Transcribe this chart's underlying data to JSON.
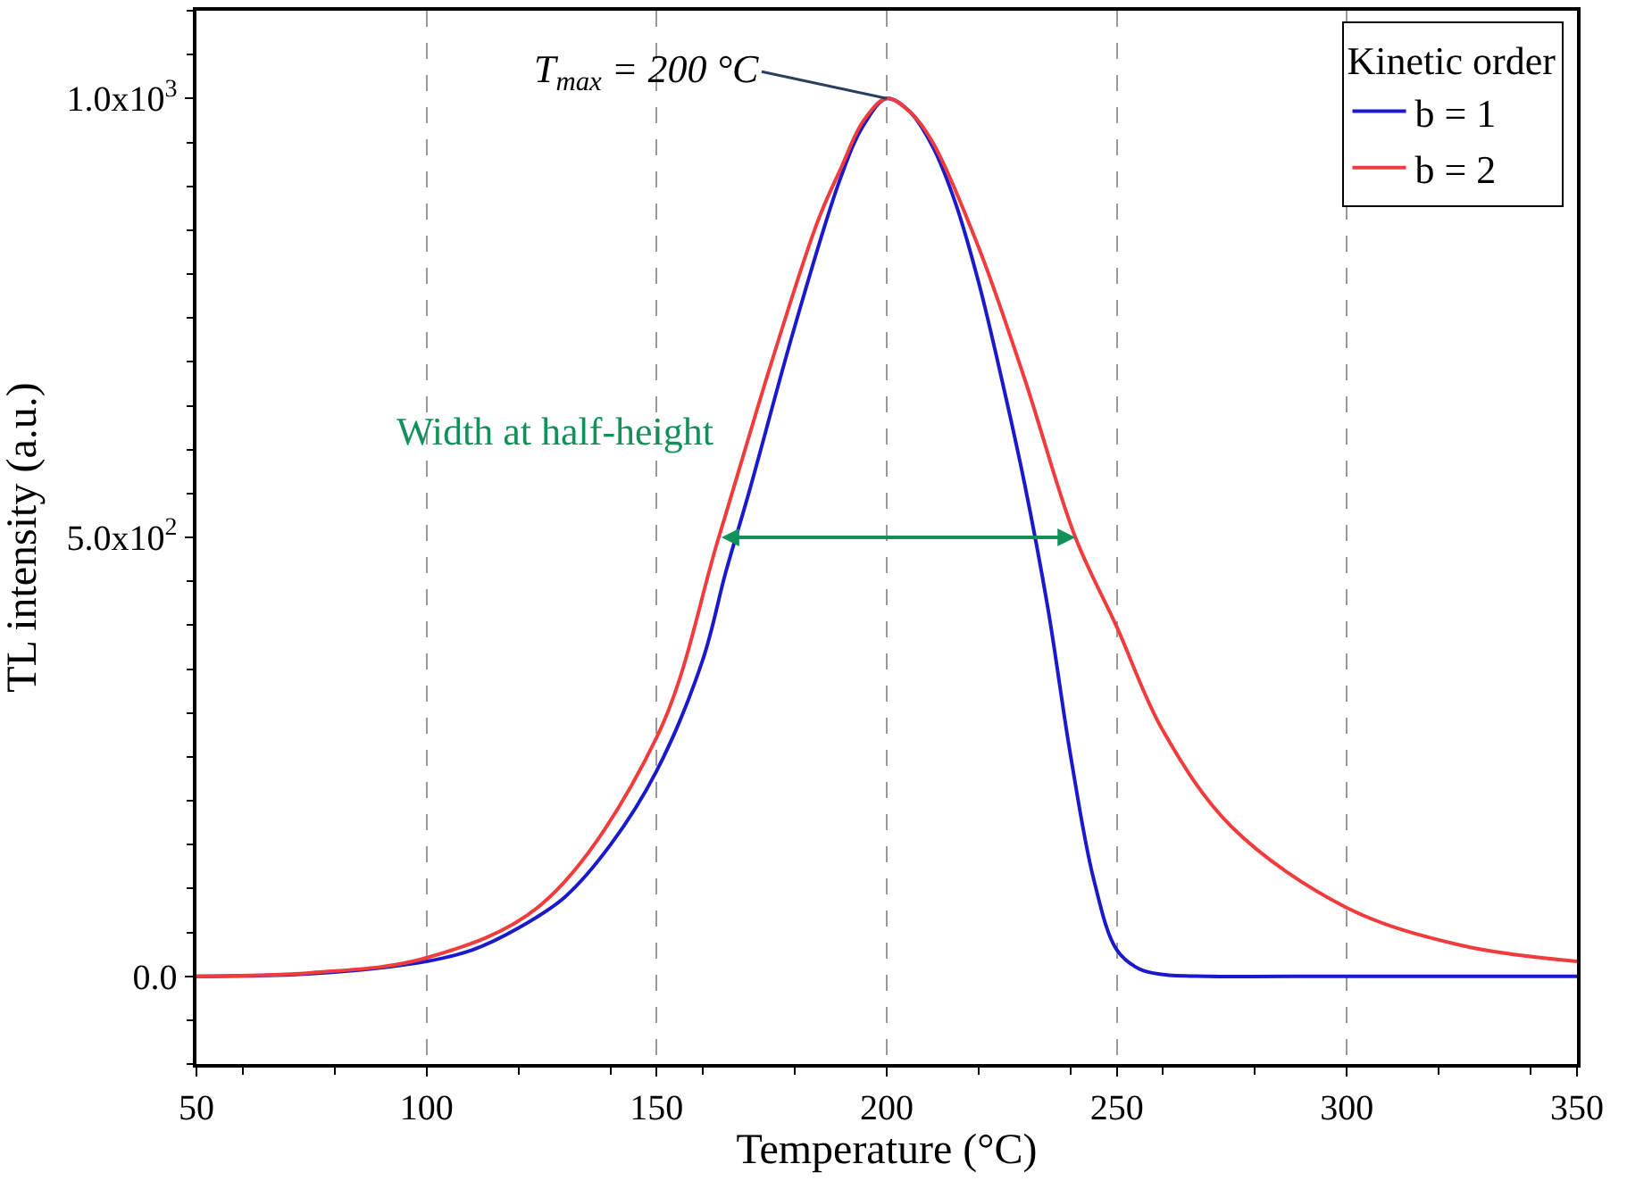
{
  "chart_data": {
    "type": "line",
    "xlabel": "Temperature (°C)",
    "ylabel": "TL intensity (a.u.)",
    "legend_title": "Kinetic order",
    "x": [
      50,
      75,
      100,
      110,
      120,
      130,
      140,
      150,
      160,
      165,
      170,
      180,
      190,
      195,
      200,
      205,
      210,
      215,
      220,
      225,
      230,
      235,
      240,
      245,
      250,
      255,
      260,
      270,
      300,
      350
    ],
    "series": [
      {
        "name": "b = 1",
        "color": "#1a1acc",
        "values": [
          0,
          3,
          17,
          30,
          55,
          90,
          150,
          234,
          360,
          460,
          550,
          740,
          910,
          970,
          1000,
          985,
          945,
          880,
          790,
          680,
          560,
          420,
          250,
          110,
          30,
          8,
          2,
          0,
          0,
          0
        ]
      },
      {
        "name": "b = 2",
        "color": "#f03c3c",
        "x": [
          50,
          75,
          100,
          125,
          150,
          163.5,
          175,
          185,
          190,
          195,
          200,
          205,
          210,
          220,
          230,
          241,
          250,
          260,
          275,
          300,
          325,
          350
        ],
        "values": [
          0,
          4,
          21,
          82,
          272,
          500,
          700,
          860,
          920,
          975,
          1000,
          985,
          950,
          830,
          680,
          500,
          398,
          280,
          170,
          78,
          35,
          17
        ]
      }
    ],
    "xlim": [
      50,
      350
    ],
    "xticks": [
      50,
      100,
      150,
      200,
      250,
      300,
      350
    ],
    "ylim": [
      -100,
      1100
    ],
    "yticks": [
      {
        "value": 0,
        "label": "0.0"
      },
      {
        "value": 500,
        "label": "5.0x10$^{2}$"
      },
      {
        "value": 1000,
        "label": "1.0x10$^{3}$"
      }
    ],
    "annotations": [
      {
        "text": "T$_{max}$ = 200 °C",
        "x": 200,
        "y": 1000
      },
      "Width at half-height"
    ],
    "grid": "x",
    "legend": "top right",
    "line_style": "solid",
    "marker": "none"
  }
}
